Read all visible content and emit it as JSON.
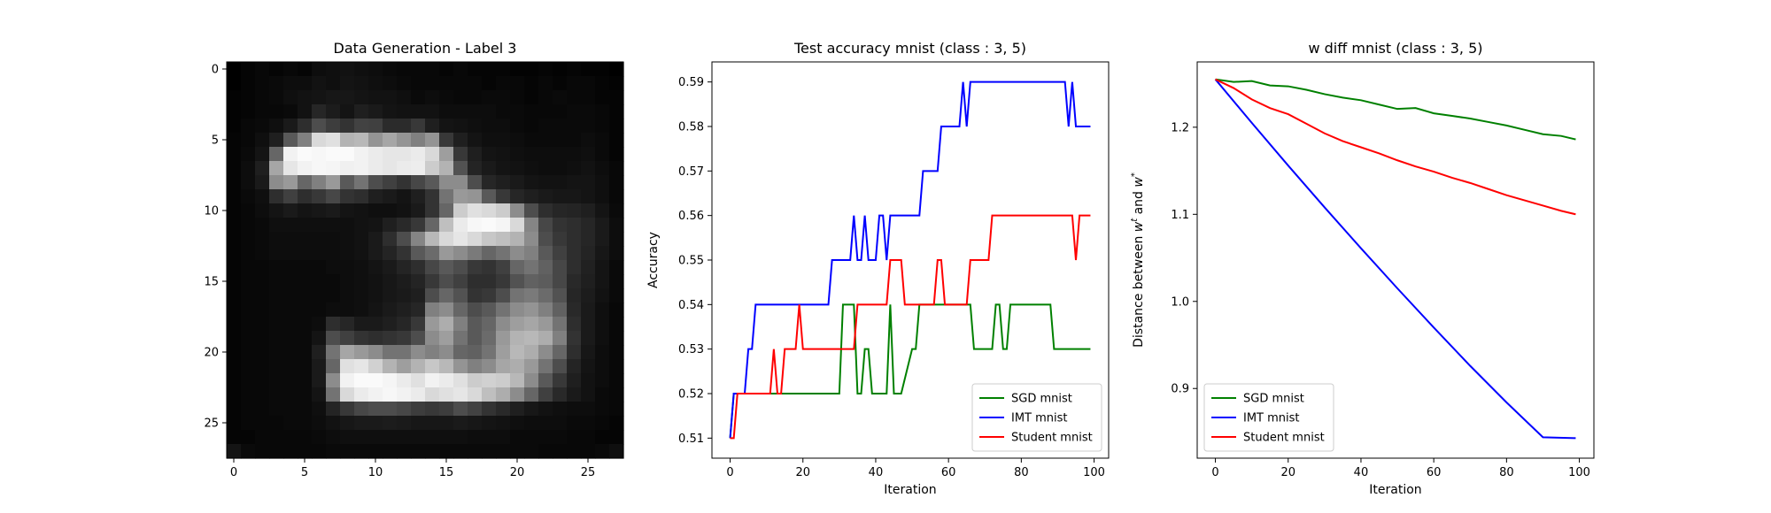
{
  "chart_data": [
    {
      "type": "heatmap",
      "title": "Data Generation - Label 3",
      "xlabel": "",
      "ylabel": "",
      "xticks": [
        0,
        5,
        10,
        15,
        20,
        25
      ],
      "yticks": [
        0,
        5,
        10,
        15,
        20,
        25
      ],
      "size": 28,
      "colormap": "gray",
      "grid": false,
      "pixels": [
        [
          0,
          2,
          3,
          2,
          3,
          2,
          5,
          6,
          7,
          6,
          5,
          4,
          3,
          3,
          3,
          2,
          3,
          2,
          2,
          2,
          1,
          1,
          2,
          1,
          2,
          1,
          1,
          0
        ],
        [
          0,
          2,
          3,
          4,
          5,
          5,
          7,
          6,
          8,
          7,
          6,
          5,
          4,
          3,
          3,
          3,
          3,
          3,
          2,
          3,
          3,
          2,
          3,
          2,
          3,
          3,
          2,
          1
        ],
        [
          1,
          2,
          3,
          4,
          6,
          7,
          8,
          9,
          9,
          8,
          7,
          7,
          6,
          4,
          5,
          4,
          3,
          3,
          4,
          4,
          3,
          2,
          3,
          4,
          3,
          3,
          2,
          2
        ],
        [
          1,
          2,
          3,
          3,
          4,
          7,
          15,
          11,
          8,
          12,
          10,
          8,
          7,
          7,
          7,
          5,
          5,
          5,
          5,
          4,
          4,
          3,
          3,
          3,
          4,
          4,
          3,
          2
        ],
        [
          1,
          3,
          4,
          6,
          10,
          18,
          30,
          24,
          20,
          26,
          25,
          17,
          17,
          22,
          12,
          8,
          7,
          6,
          5,
          5,
          4,
          3,
          4,
          4,
          4,
          4,
          3,
          2
        ],
        [
          2,
          3,
          6,
          12,
          35,
          50,
          85,
          88,
          70,
          72,
          58,
          65,
          58,
          50,
          58,
          22,
          12,
          8,
          6,
          6,
          5,
          4,
          4,
          4,
          4,
          5,
          4,
          2
        ],
        [
          2,
          4,
          8,
          40,
          95,
          98,
          97,
          98,
          98,
          95,
          92,
          90,
          90,
          92,
          85,
          62,
          22,
          12,
          8,
          7,
          6,
          5,
          5,
          5,
          5,
          6,
          4,
          2
        ],
        [
          2,
          5,
          12,
          65,
          90,
          95,
          97,
          96,
          94,
          95,
          92,
          90,
          92,
          93,
          80,
          70,
          32,
          14,
          10,
          8,
          7,
          6,
          5,
          5,
          6,
          7,
          5,
          3
        ],
        [
          2,
          5,
          10,
          55,
          60,
          40,
          50,
          60,
          35,
          45,
          30,
          25,
          20,
          28,
          35,
          55,
          55,
          30,
          15,
          12,
          10,
          8,
          7,
          7,
          8,
          8,
          6,
          3
        ],
        [
          2,
          4,
          6,
          18,
          25,
          18,
          22,
          28,
          20,
          18,
          12,
          10,
          8,
          12,
          20,
          45,
          60,
          58,
          35,
          22,
          15,
          12,
          10,
          9,
          9,
          8,
          6,
          3
        ],
        [
          2,
          3,
          5,
          8,
          10,
          8,
          9,
          10,
          8,
          7,
          6,
          6,
          7,
          10,
          20,
          40,
          80,
          88,
          85,
          80,
          55,
          30,
          18,
          15,
          14,
          12,
          8,
          4
        ],
        [
          2,
          3,
          4,
          6,
          6,
          6,
          6,
          6,
          6,
          7,
          8,
          12,
          16,
          22,
          40,
          75,
          92,
          97,
          98,
          96,
          85,
          52,
          28,
          20,
          18,
          15,
          10,
          5
        ],
        [
          2,
          3,
          4,
          5,
          5,
          5,
          5,
          5,
          6,
          7,
          10,
          18,
          30,
          52,
          72,
          85,
          90,
          85,
          78,
          75,
          70,
          55,
          30,
          22,
          18,
          15,
          10,
          5
        ],
        [
          2,
          3,
          4,
          5,
          5,
          5,
          5,
          5,
          6,
          7,
          10,
          14,
          20,
          35,
          42,
          60,
          55,
          48,
          40,
          45,
          55,
          50,
          35,
          25,
          18,
          14,
          9,
          5
        ],
        [
          2,
          3,
          3,
          4,
          4,
          4,
          4,
          5,
          5,
          6,
          8,
          10,
          14,
          18,
          28,
          35,
          30,
          22,
          20,
          25,
          40,
          45,
          38,
          28,
          18,
          13,
          8,
          4
        ],
        [
          2,
          3,
          3,
          4,
          4,
          4,
          4,
          4,
          5,
          6,
          7,
          9,
          11,
          14,
          22,
          30,
          25,
          18,
          18,
          22,
          32,
          38,
          36,
          28,
          16,
          12,
          8,
          4
        ],
        [
          2,
          3,
          3,
          4,
          4,
          4,
          4,
          4,
          5,
          6,
          7,
          9,
          10,
          12,
          30,
          40,
          32,
          20,
          22,
          30,
          45,
          48,
          42,
          32,
          15,
          11,
          7,
          4
        ],
        [
          2,
          3,
          3,
          4,
          4,
          4,
          4,
          5,
          5,
          6,
          8,
          10,
          12,
          15,
          50,
          55,
          40,
          30,
          35,
          45,
          55,
          58,
          50,
          38,
          16,
          10,
          6,
          3
        ],
        [
          2,
          3,
          3,
          4,
          4,
          4,
          5,
          18,
          15,
          10,
          10,
          12,
          15,
          22,
          60,
          68,
          50,
          35,
          40,
          55,
          62,
          65,
          60,
          45,
          18,
          10,
          6,
          3
        ],
        [
          2,
          3,
          3,
          4,
          4,
          4,
          8,
          30,
          25,
          20,
          18,
          20,
          22,
          30,
          55,
          62,
          45,
          35,
          42,
          60,
          70,
          72,
          68,
          50,
          20,
          10,
          6,
          3
        ],
        [
          2,
          3,
          3,
          4,
          4,
          4,
          12,
          45,
          65,
          60,
          55,
          45,
          45,
          55,
          50,
          55,
          40,
          38,
          45,
          62,
          72,
          68,
          55,
          40,
          18,
          9,
          5,
          3
        ],
        [
          2,
          3,
          3,
          4,
          4,
          4,
          10,
          40,
          88,
          90,
          82,
          70,
          62,
          70,
          78,
          72,
          58,
          50,
          55,
          65,
          68,
          60,
          45,
          30,
          14,
          8,
          5,
          3
        ],
        [
          2,
          3,
          3,
          4,
          4,
          4,
          10,
          55,
          95,
          98,
          98,
          96,
          92,
          88,
          95,
          92,
          88,
          80,
          82,
          80,
          72,
          55,
          35,
          22,
          12,
          7,
          5,
          3
        ],
        [
          2,
          3,
          3,
          4,
          4,
          4,
          8,
          45,
          85,
          92,
          95,
          97,
          95,
          92,
          85,
          88,
          90,
          85,
          75,
          68,
          55,
          40,
          25,
          16,
          10,
          7,
          4,
          3
        ],
        [
          2,
          3,
          3,
          4,
          4,
          4,
          6,
          14,
          22,
          28,
          30,
          30,
          28,
          24,
          22,
          24,
          30,
          26,
          20,
          16,
          12,
          9,
          7,
          6,
          5,
          5,
          4,
          3
        ],
        [
          2,
          3,
          3,
          3,
          4,
          4,
          5,
          7,
          9,
          10,
          10,
          11,
          10,
          9,
          9,
          9,
          10,
          9,
          8,
          7,
          6,
          5,
          5,
          5,
          4,
          4,
          3,
          2
        ],
        [
          2,
          2,
          3,
          3,
          3,
          3,
          4,
          5,
          6,
          6,
          6,
          6,
          6,
          6,
          6,
          6,
          6,
          5,
          5,
          5,
          4,
          4,
          4,
          4,
          3,
          3,
          2,
          2
        ],
        [
          8,
          4,
          3,
          3,
          3,
          3,
          3,
          4,
          4,
          4,
          4,
          4,
          4,
          4,
          4,
          4,
          4,
          4,
          4,
          4,
          4,
          4,
          3,
          3,
          3,
          3,
          4,
          6
        ]
      ]
    },
    {
      "type": "line",
      "title": "Test accuracy mnist (class : 3, 5)",
      "xlabel": "Iteration",
      "ylabel": "Accuracy",
      "xlim": [
        -5,
        104
      ],
      "ylim": [
        0.5055,
        0.5945
      ],
      "xticks": [
        0,
        20,
        40,
        60,
        80,
        100
      ],
      "yticks": [
        0.51,
        0.52,
        0.53,
        0.54,
        0.55,
        0.56,
        0.57,
        0.58,
        0.59
      ],
      "legend_position": "lower-right",
      "grid": false,
      "series": [
        {
          "name": "SGD mnist",
          "color": "#008000",
          "x": [
            0,
            1,
            2,
            7,
            30,
            31,
            34,
            35,
            36,
            37,
            38,
            39,
            40,
            43,
            44,
            45,
            46,
            47,
            50,
            51,
            52,
            53,
            60,
            61,
            62,
            63,
            66,
            67,
            72,
            73,
            74,
            75,
            76,
            77,
            88,
            89,
            99
          ],
          "y": [
            0.51,
            0.52,
            0.52,
            0.52,
            0.52,
            0.54,
            0.54,
            0.52,
            0.52,
            0.53,
            0.53,
            0.52,
            0.52,
            0.52,
            0.54,
            0.52,
            0.52,
            0.52,
            0.53,
            0.53,
            0.54,
            0.54,
            0.54,
            0.54,
            0.54,
            0.54,
            0.54,
            0.53,
            0.53,
            0.54,
            0.54,
            0.53,
            0.53,
            0.54,
            0.54,
            0.53,
            0.53
          ]
        },
        {
          "name": "IMT mnist",
          "color": "#0000ff",
          "x": [
            0,
            1,
            2,
            4,
            5,
            6,
            7,
            8,
            9,
            10,
            20,
            27,
            28,
            29,
            30,
            33,
            34,
            35,
            36,
            37,
            38,
            39,
            40,
            41,
            42,
            43,
            44,
            45,
            46,
            47,
            52,
            53,
            57,
            58,
            63,
            64,
            65,
            66,
            92,
            93,
            94,
            95,
            99
          ],
          "y": [
            0.51,
            0.52,
            0.52,
            0.52,
            0.53,
            0.53,
            0.54,
            0.54,
            0.54,
            0.54,
            0.54,
            0.54,
            0.55,
            0.55,
            0.55,
            0.55,
            0.56,
            0.55,
            0.55,
            0.56,
            0.55,
            0.55,
            0.55,
            0.56,
            0.56,
            0.55,
            0.56,
            0.56,
            0.56,
            0.56,
            0.56,
            0.57,
            0.57,
            0.58,
            0.58,
            0.59,
            0.58,
            0.59,
            0.59,
            0.58,
            0.59,
            0.58,
            0.58
          ]
        },
        {
          "name": "Student mnist",
          "color": "#ff0000",
          "x": [
            0,
            1,
            2,
            11,
            12,
            13,
            14,
            15,
            16,
            17,
            18,
            19,
            20,
            21,
            34,
            35,
            43,
            44,
            45,
            46,
            47,
            48,
            49,
            55,
            56,
            57,
            58,
            59,
            60,
            61,
            65,
            66,
            67,
            71,
            72,
            73,
            94,
            95,
            96,
            97,
            99
          ],
          "y": [
            0.51,
            0.51,
            0.52,
            0.52,
            0.53,
            0.52,
            0.52,
            0.53,
            0.53,
            0.53,
            0.53,
            0.54,
            0.53,
            0.53,
            0.53,
            0.54,
            0.54,
            0.55,
            0.55,
            0.55,
            0.55,
            0.54,
            0.54,
            0.54,
            0.54,
            0.55,
            0.55,
            0.54,
            0.54,
            0.54,
            0.54,
            0.55,
            0.55,
            0.55,
            0.56,
            0.56,
            0.56,
            0.55,
            0.56,
            0.56,
            0.56
          ]
        }
      ]
    },
    {
      "type": "line",
      "title": "w diff mnist (class : 3, 5)",
      "xlabel": "Iteration",
      "ylabel": "Distance between w^t and w^*",
      "xlim": [
        -5,
        104
      ],
      "ylim": [
        0.82,
        1.275
      ],
      "xticks": [
        0,
        20,
        40,
        60,
        80,
        100
      ],
      "yticks": [
        0.9,
        1.0,
        1.1,
        1.2
      ],
      "legend_position": "lower-left",
      "grid": false,
      "series": [
        {
          "name": "SGD mnist",
          "color": "#008000",
          "x": [
            0,
            5,
            10,
            15,
            20,
            25,
            30,
            35,
            40,
            45,
            50,
            55,
            60,
            65,
            70,
            75,
            80,
            85,
            90,
            95,
            99
          ],
          "y": [
            1.255,
            1.252,
            1.253,
            1.248,
            1.247,
            1.243,
            1.238,
            1.234,
            1.231,
            1.226,
            1.221,
            1.222,
            1.216,
            1.213,
            1.21,
            1.206,
            1.202,
            1.197,
            1.192,
            1.19,
            1.186
          ]
        },
        {
          "name": "IMT mnist",
          "color": "#0000ff",
          "x": [
            0,
            10,
            20,
            30,
            40,
            50,
            60,
            70,
            80,
            90,
            99
          ],
          "y": [
            1.255,
            1.205,
            1.156,
            1.108,
            1.061,
            1.015,
            0.97,
            0.926,
            0.884,
            0.844,
            0.843
          ]
        },
        {
          "name": "Student mnist",
          "color": "#ff0000",
          "x": [
            0,
            5,
            10,
            15,
            20,
            25,
            30,
            35,
            40,
            45,
            50,
            55,
            60,
            65,
            70,
            75,
            80,
            85,
            90,
            95,
            99
          ],
          "y": [
            1.255,
            1.245,
            1.232,
            1.222,
            1.215,
            1.204,
            1.193,
            1.184,
            1.177,
            1.17,
            1.162,
            1.155,
            1.149,
            1.142,
            1.136,
            1.129,
            1.122,
            1.116,
            1.11,
            1.104,
            1.1
          ]
        }
      ]
    }
  ]
}
